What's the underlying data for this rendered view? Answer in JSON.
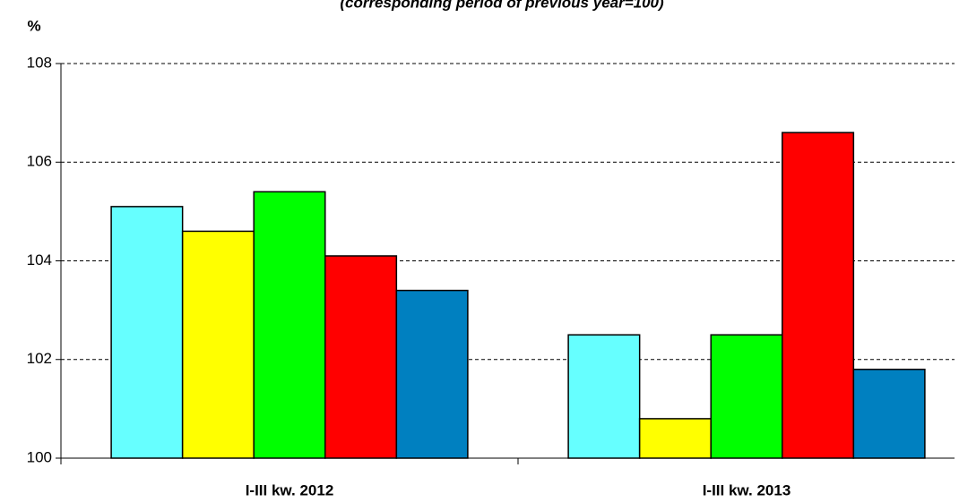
{
  "chart_data": {
    "type": "bar",
    "subtitle": "(corresponding period of previous year=100)",
    "y_label": "%",
    "categories": [
      "I-III kw. 2012",
      "I-III kw. 2013"
    ],
    "series": [
      {
        "color": "#66ffff",
        "values": [
          105.1,
          102.5
        ]
      },
      {
        "color": "#ffff00",
        "values": [
          104.6,
          100.8
        ]
      },
      {
        "color": "#00ff00",
        "values": [
          105.4,
          102.5
        ]
      },
      {
        "color": "#ff0000",
        "values": [
          104.1,
          106.6
        ]
      },
      {
        "color": "#0080c0",
        "values": [
          103.4,
          101.8
        ]
      }
    ],
    "ylim": [
      100,
      108
    ],
    "yticks": [
      100,
      102,
      104,
      106,
      108
    ],
    "grid": true
  }
}
